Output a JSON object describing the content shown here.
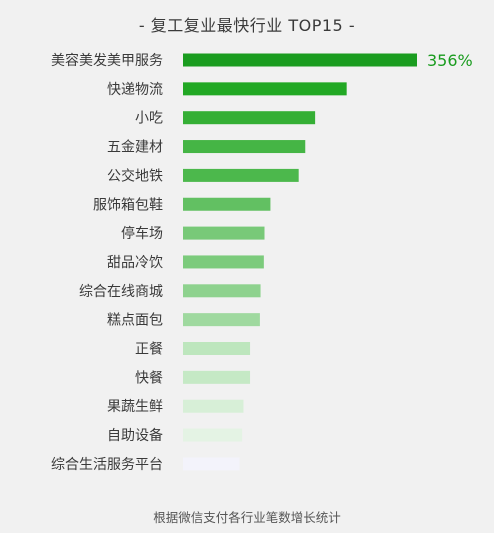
{
  "chart_data": {
    "type": "bar",
    "orientation": "horizontal",
    "title": "- 复工复业最快行业 TOP15 -",
    "footnote": "根据微信支付各行业笔数增长统计",
    "categories": [
      "美容美发美甲服务",
      "快递物流",
      "小吃",
      "五金建材",
      "公交地铁",
      "服饰箱包鞋",
      "停车场",
      "甜品冷饮",
      "综合在线商城",
      "糕点面包",
      "正餐",
      "快餐",
      "果蔬生鲜",
      "自助设备",
      "综合生活服务平台"
    ],
    "values": [
      356,
      249,
      201,
      186,
      176,
      133,
      124,
      123,
      118,
      117,
      102,
      102,
      92,
      90,
      86
    ],
    "data_labels": [
      {
        "category": "美容美发美甲服务",
        "text": "356%"
      }
    ],
    "unit": "%",
    "grid": false,
    "legend": false,
    "colors": [
      "#1a9c1f",
      "#22a824",
      "#35af35",
      "#45b545",
      "#4cb84c",
      "#62c062",
      "#78c978",
      "#7ccb7c",
      "#8ed28e",
      "#9fd99f",
      "#bde6bd",
      "#c5e9c5",
      "#d7efd7",
      "#e4f3e4",
      "#f3f3fb"
    ],
    "label_color": "#1a9c1f",
    "text_color": "#3a3a3a",
    "background": "#f1f1f1"
  }
}
